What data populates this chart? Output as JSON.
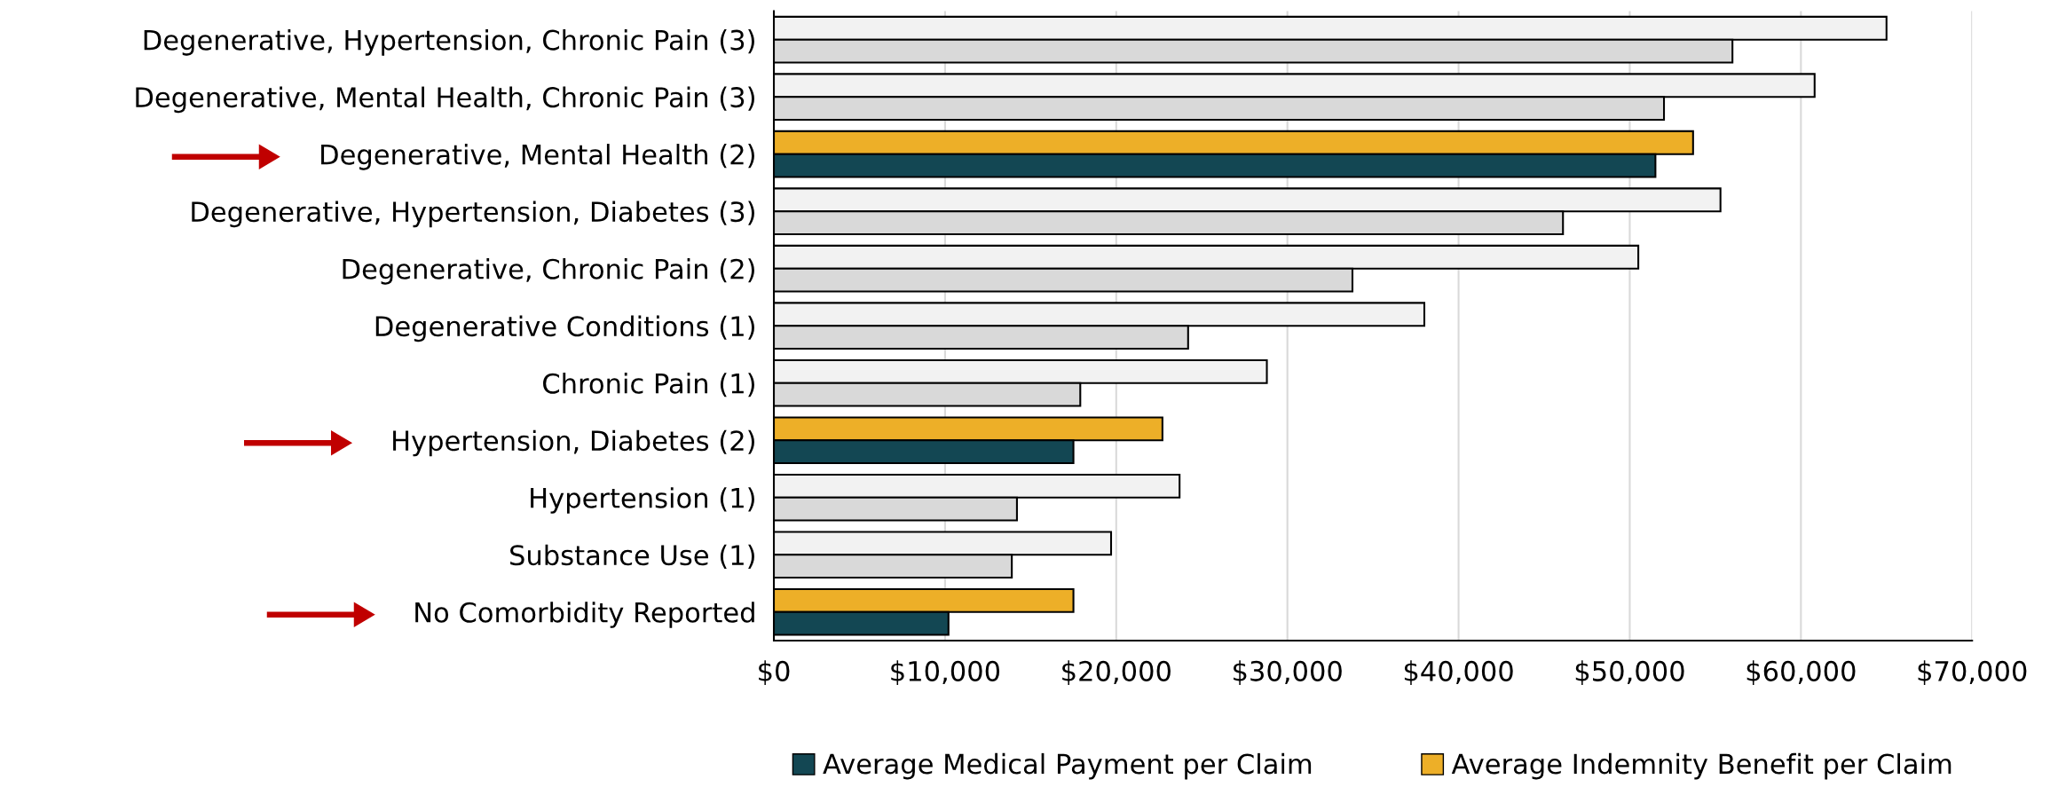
{
  "chart_data": {
    "type": "bar",
    "orientation": "horizontal",
    "categories": [
      "Degenerative, Hypertension, Chronic Pain (3)",
      "Degenerative, Mental Health, Chronic Pain (3)",
      "Degenerative, Mental Health (2)",
      "Degenerative, Hypertension, Diabetes (3)",
      "Degenerative, Chronic Pain (2)",
      "Degenerative Conditions (1)",
      "Chronic Pain (1)",
      "Hypertension, Diabetes (2)",
      "Hypertension (1)",
      "Substance Use (1)",
      "No Comorbidity Reported"
    ],
    "series": [
      {
        "name": "Average Indemnity Benefit per Claim",
        "color": "#edaf28",
        "colors": [
          "#f2f2f2",
          "#f2f2f2",
          "#edaf28",
          "#f2f2f2",
          "#f2f2f2",
          "#f2f2f2",
          "#f2f2f2",
          "#edaf28",
          "#f2f2f2",
          "#f2f2f2",
          "#edaf28"
        ],
        "values": [
          65000,
          60800,
          53700,
          55300,
          50500,
          38000,
          28800,
          22700,
          23700,
          19700,
          17500
        ]
      },
      {
        "name": "Average Medical Payment per Claim",
        "color": "#134753",
        "colors": [
          "#d9d9d9",
          "#d9d9d9",
          "#134753",
          "#d9d9d9",
          "#d9d9d9",
          "#d9d9d9",
          "#d9d9d9",
          "#134753",
          "#d9d9d9",
          "#d9d9d9",
          "#134753"
        ],
        "values": [
          56000,
          52000,
          51500,
          46100,
          33800,
          24200,
          17900,
          17500,
          14200,
          13900,
          10200
        ]
      }
    ],
    "xlim": [
      0,
      70000
    ],
    "xticks": [
      {
        "value": 0,
        "label": "$0"
      },
      {
        "value": 10000,
        "label": "$10,000"
      },
      {
        "value": 20000,
        "label": "$20,000"
      },
      {
        "value": 30000,
        "label": "$30,000"
      },
      {
        "value": 40000,
        "label": "$40,000"
      },
      {
        "value": 50000,
        "label": "$50,000"
      },
      {
        "value": 60000,
        "label": "$60,000"
      },
      {
        "value": 70000,
        "label": "$70,000"
      }
    ],
    "grid": "x",
    "legend": "bottom"
  }
}
